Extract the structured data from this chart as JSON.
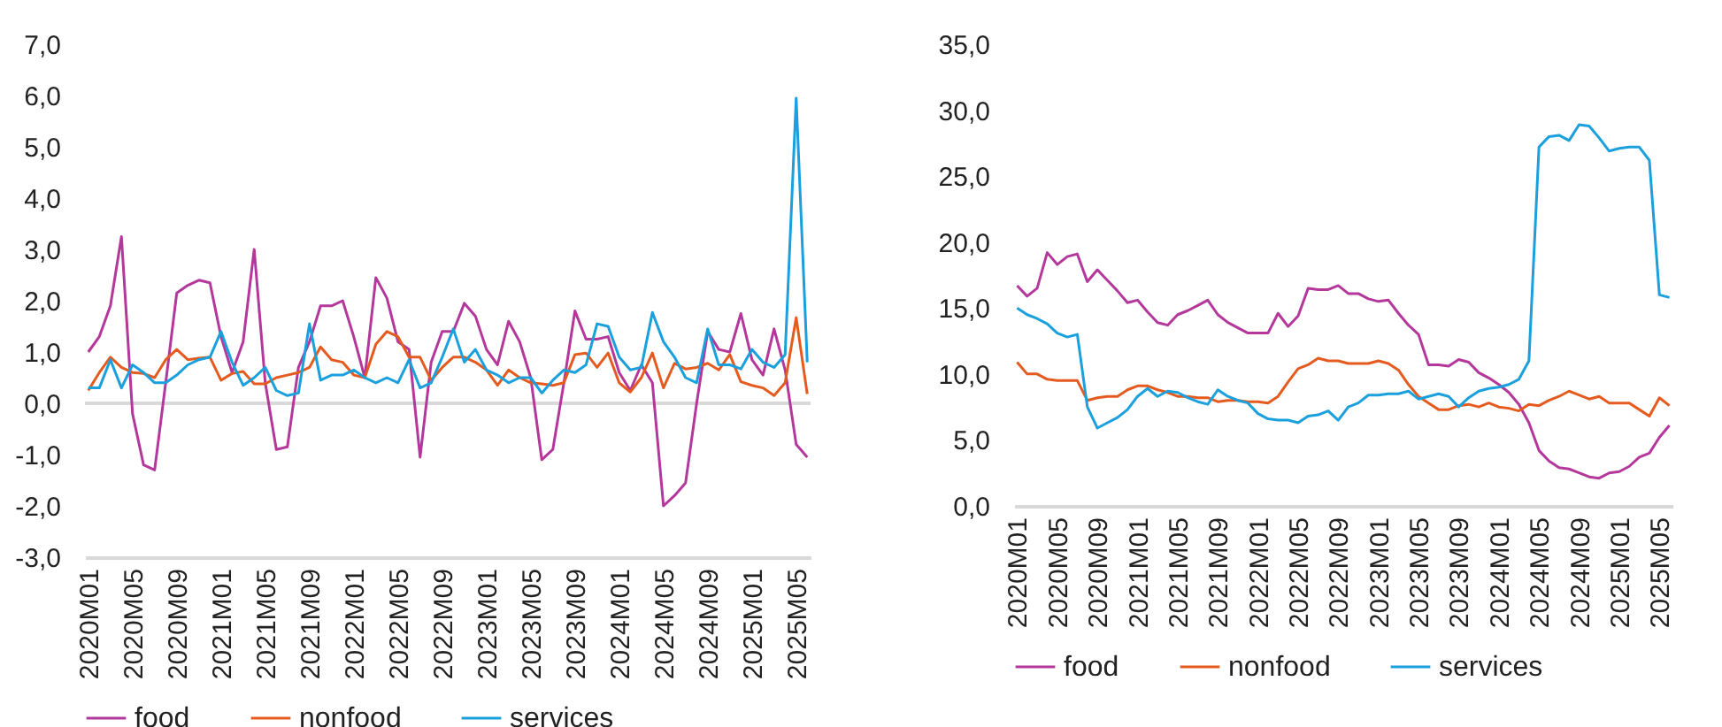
{
  "chart_data": [
    {
      "type": "line",
      "categories": [
        "2020M01",
        null,
        null,
        null,
        "2020M05",
        null,
        null,
        null,
        "2020M09",
        null,
        null,
        null,
        "2021M01",
        null,
        null,
        null,
        "2021M05",
        null,
        null,
        null,
        "2021M09",
        null,
        null,
        null,
        "2022M01",
        null,
        null,
        null,
        "2022M05",
        null,
        null,
        null,
        "2022M09",
        null,
        null,
        null,
        "2023M01",
        null,
        null,
        null,
        "2023M05",
        null,
        null,
        null,
        "2023M09",
        null,
        null,
        null,
        "2024M01",
        null,
        null,
        null,
        "2024M05",
        null,
        null,
        null,
        "2024M09",
        null,
        null,
        null,
        "2025M01",
        null,
        null,
        null,
        "2025M05",
        null
      ],
      "series": [
        {
          "name": "food",
          "color": "#b4379b",
          "values": [
            1.0,
            1.3,
            1.9,
            3.25,
            -0.2,
            -1.2,
            -1.3,
            0.4,
            2.15,
            2.3,
            2.4,
            2.35,
            1.3,
            0.6,
            1.2,
            3.0,
            0.4,
            -0.9,
            -0.85,
            0.7,
            1.2,
            1.9,
            1.9,
            2.0,
            1.3,
            0.5,
            2.45,
            2.05,
            1.2,
            1.05,
            -1.05,
            0.8,
            1.4,
            1.4,
            1.95,
            1.7,
            1.05,
            0.75,
            1.6,
            1.2,
            0.5,
            -1.1,
            -0.9,
            0.4,
            1.8,
            1.25,
            1.25,
            1.3,
            0.6,
            0.25,
            0.75,
            0.4,
            -2.0,
            -1.8,
            -1.55,
            0.0,
            1.4,
            1.05,
            1.0,
            1.75,
            0.85,
            0.55,
            1.45,
            0.65,
            -0.8,
            -1.05
          ]
        },
        {
          "name": "nonfood",
          "color": "#e55b1f",
          "values": [
            0.25,
            0.6,
            0.9,
            0.7,
            0.6,
            0.58,
            0.5,
            0.85,
            1.05,
            0.85,
            0.88,
            0.9,
            0.45,
            0.58,
            0.62,
            0.38,
            0.38,
            0.5,
            0.55,
            0.6,
            0.7,
            1.1,
            0.85,
            0.8,
            0.55,
            0.5,
            1.15,
            1.4,
            1.3,
            0.9,
            0.9,
            0.45,
            0.7,
            0.9,
            0.9,
            0.8,
            0.65,
            0.35,
            0.65,
            0.5,
            0.4,
            0.38,
            0.35,
            0.4,
            0.95,
            0.98,
            0.7,
            0.98,
            0.4,
            0.22,
            0.5,
            0.98,
            0.3,
            0.78,
            0.67,
            0.7,
            0.78,
            0.65,
            0.95,
            0.42,
            0.35,
            0.3,
            0.15,
            0.4,
            1.67,
            0.18
          ]
        },
        {
          "name": "services",
          "color": "#1aa0dc",
          "values": [
            0.3,
            0.3,
            0.85,
            0.3,
            0.75,
            0.6,
            0.4,
            0.4,
            0.55,
            0.75,
            0.85,
            0.9,
            1.4,
            0.8,
            0.35,
            0.5,
            0.7,
            0.25,
            0.15,
            0.2,
            1.55,
            0.45,
            0.55,
            0.55,
            0.65,
            0.5,
            0.4,
            0.5,
            0.4,
            0.85,
            0.3,
            0.4,
            0.9,
            1.45,
            0.8,
            1.05,
            0.65,
            0.55,
            0.4,
            0.5,
            0.5,
            0.2,
            0.45,
            0.65,
            0.6,
            0.75,
            1.55,
            1.5,
            0.9,
            0.65,
            0.7,
            1.77,
            1.2,
            0.9,
            0.5,
            0.4,
            1.45,
            0.75,
            0.75,
            0.67,
            1.05,
            0.8,
            0.7,
            0.95,
            5.95,
            0.8
          ]
        }
      ],
      "ylim": [
        -3,
        7
      ],
      "yticks": [
        {
          "value": -3,
          "label": "-3,0"
        },
        {
          "value": -2,
          "label": "-2,0"
        },
        {
          "value": -1,
          "label": "-1,0"
        },
        {
          "value": 0,
          "label": "0,0"
        },
        {
          "value": 1,
          "label": "1,0"
        },
        {
          "value": 2,
          "label": "2,0"
        },
        {
          "value": 3,
          "label": "3,0"
        },
        {
          "value": 4,
          "label": "4,0"
        },
        {
          "value": 5,
          "label": "5,0"
        },
        {
          "value": 6,
          "label": "6,0"
        },
        {
          "value": 7,
          "label": "7,0"
        }
      ],
      "legend": "bottom"
    },
    {
      "type": "line",
      "categories": [
        "2020M01",
        null,
        null,
        null,
        "2020M05",
        null,
        null,
        null,
        "2020M09",
        null,
        null,
        null,
        "2021M01",
        null,
        null,
        null,
        "2021M05",
        null,
        null,
        null,
        "2021M09",
        null,
        null,
        null,
        "2022M01",
        null,
        null,
        null,
        "2022M05",
        null,
        null,
        null,
        "2022M09",
        null,
        null,
        null,
        "2023M01",
        null,
        null,
        null,
        "2023M05",
        null,
        null,
        null,
        "2023M09",
        null,
        null,
        null,
        "2024M01",
        null,
        null,
        null,
        "2024M05",
        null,
        null,
        null,
        "2024M09",
        null,
        null,
        null,
        "2025M01",
        null,
        null,
        null,
        "2025M05",
        null
      ],
      "series": [
        {
          "name": "food",
          "color": "#b4379b",
          "values": [
            16.7,
            15.9,
            16.5,
            19.2,
            18.3,
            18.9,
            19.1,
            17.0,
            17.9,
            17.1,
            16.3,
            15.4,
            15.6,
            14.7,
            13.9,
            13.7,
            14.5,
            14.8,
            15.2,
            15.6,
            14.5,
            13.9,
            13.5,
            13.1,
            13.1,
            13.1,
            14.6,
            13.6,
            14.4,
            16.5,
            16.4,
            16.4,
            16.7,
            16.1,
            16.1,
            15.7,
            15.5,
            15.6,
            14.6,
            13.7,
            13.0,
            10.7,
            10.7,
            10.6,
            11.1,
            10.9,
            10.1,
            9.7,
            9.2,
            8.6,
            7.7,
            6.3,
            4.2,
            3.4,
            2.9,
            2.8,
            2.5,
            2.2,
            2.1,
            2.5,
            2.6,
            3.0,
            3.7,
            4.0,
            5.2,
            6.1
          ]
        },
        {
          "name": "nonfood",
          "color": "#e55b1f",
          "values": [
            10.9,
            10.0,
            10.0,
            9.6,
            9.5,
            9.5,
            9.5,
            8.0,
            8.2,
            8.3,
            8.3,
            8.8,
            9.1,
            9.1,
            8.8,
            8.6,
            8.3,
            8.3,
            8.2,
            8.2,
            7.9,
            8.0,
            8.0,
            7.9,
            7.9,
            7.8,
            8.3,
            9.4,
            10.4,
            10.7,
            11.2,
            11.0,
            11.0,
            10.8,
            10.8,
            10.8,
            11.0,
            10.8,
            10.3,
            9.2,
            8.3,
            7.8,
            7.3,
            7.3,
            7.6,
            7.7,
            7.5,
            7.8,
            7.5,
            7.4,
            7.2,
            7.7,
            7.6,
            8.0,
            8.3,
            8.7,
            8.4,
            8.1,
            8.3,
            7.8,
            7.8,
            7.8,
            7.3,
            6.8,
            8.2,
            7.6
          ]
        },
        {
          "name": "services",
          "color": "#1aa0dc",
          "values": [
            15.0,
            14.5,
            14.2,
            13.8,
            13.1,
            12.8,
            13.0,
            7.5,
            5.9,
            6.3,
            6.7,
            7.3,
            8.3,
            8.9,
            8.3,
            8.7,
            8.6,
            8.2,
            7.9,
            7.7,
            8.8,
            8.3,
            8.0,
            7.8,
            7.0,
            6.6,
            6.5,
            6.5,
            6.3,
            6.8,
            6.9,
            7.2,
            6.5,
            7.5,
            7.8,
            8.4,
            8.4,
            8.5,
            8.5,
            8.7,
            8.1,
            8.3,
            8.5,
            8.3,
            7.5,
            8.2,
            8.7,
            8.9,
            9.0,
            9.2,
            9.6,
            11.0,
            27.2,
            28.0,
            28.1,
            27.7,
            28.9,
            28.8,
            27.9,
            26.9,
            27.1,
            27.2,
            27.2,
            26.2,
            16.0,
            15.8
          ]
        }
      ],
      "ylim": [
        0,
        35
      ],
      "yticks": [
        {
          "value": 0,
          "label": "0,0"
        },
        {
          "value": 5,
          "label": "5,0"
        },
        {
          "value": 10,
          "label": "10,0"
        },
        {
          "value": 15,
          "label": "15,0"
        },
        {
          "value": 20,
          "label": "20,0"
        },
        {
          "value": 25,
          "label": "25,0"
        },
        {
          "value": 30,
          "label": "30,0"
        },
        {
          "value": 35,
          "label": "35,0"
        }
      ],
      "legend": "bottom"
    }
  ]
}
